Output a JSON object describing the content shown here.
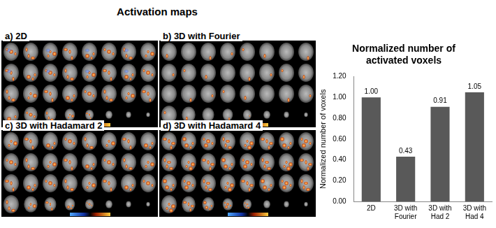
{
  "heading": "Activation maps",
  "panels": [
    {
      "label": "a) 2D"
    },
    {
      "label": "b) 3D with Fourier"
    },
    {
      "label": "c) 3D with Hadamard 2"
    },
    {
      "label": "d) 3D with Hadamard 4"
    }
  ],
  "chart_data": {
    "type": "bar",
    "title": "Normalized number of activated voxels",
    "y_label": "Normalized number of voxels",
    "categories": [
      "2D",
      "3D with Fourier",
      "3D with Had 2",
      "3D with Had 4"
    ],
    "values": [
      1.0,
      0.43,
      0.91,
      1.05
    ],
    "value_labels": [
      "1.00",
      "0.43",
      "0.91",
      "1.05"
    ],
    "data_labels": true,
    "color": "#595959",
    "ylim": [
      0,
      1.2
    ],
    "yticks": [
      {
        "value": 0,
        "label": "0.00"
      },
      {
        "value": 0.2,
        "label": "0.20"
      },
      {
        "value": 0.4,
        "label": "0.40"
      },
      {
        "value": 0.6,
        "label": "0.60"
      },
      {
        "value": 0.8,
        "label": "0.80"
      },
      {
        "value": 1.0,
        "label": "1.00"
      },
      {
        "value": 1.2,
        "label": "1.20"
      }
    ],
    "grid": false
  }
}
